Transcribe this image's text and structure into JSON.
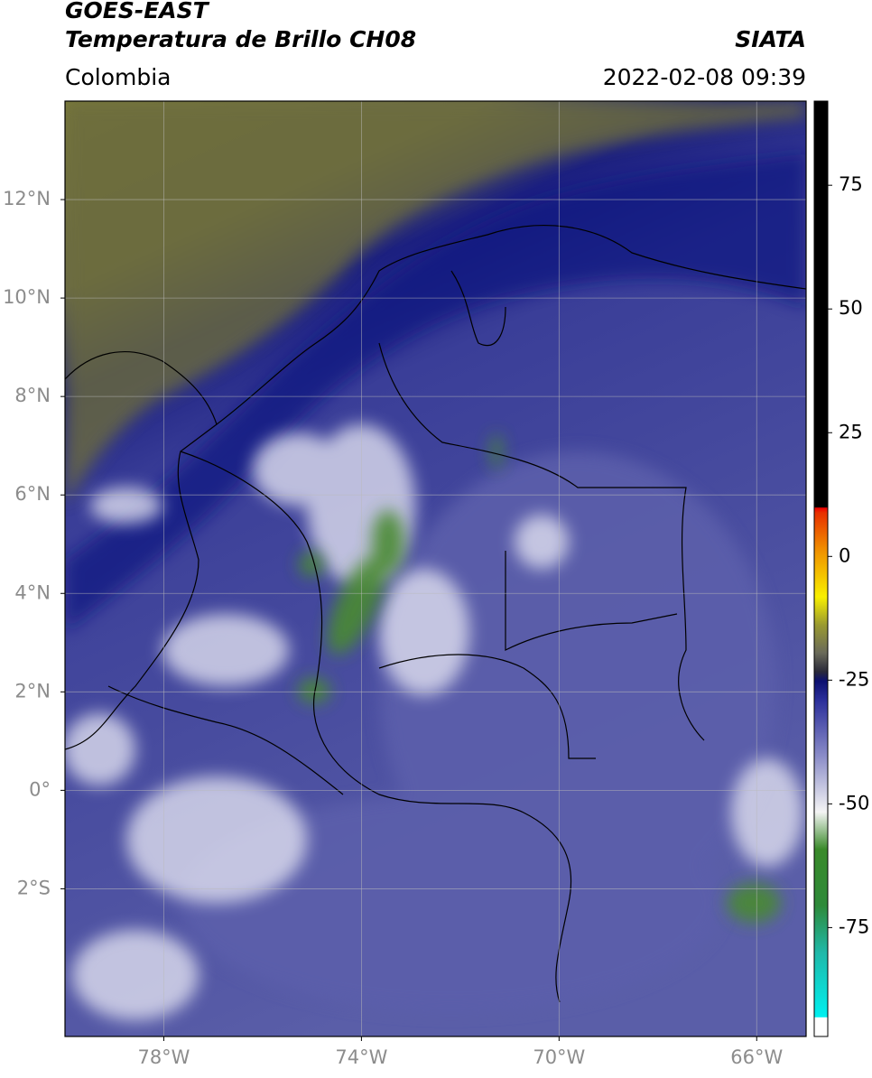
{
  "header": {
    "title": "GOES-EAST",
    "subtitle": "Temperatura de Brillo CH08",
    "region": "Colombia",
    "source": "SIATA",
    "datetime": "2022-02-08 09:39"
  },
  "map": {
    "xlim": [
      -80,
      -65
    ],
    "ylim": [
      -5,
      14
    ],
    "xticks": [
      {
        "value": -78,
        "label": "78°W"
      },
      {
        "value": -74,
        "label": "74°W"
      },
      {
        "value": -70,
        "label": "70°W"
      },
      {
        "value": -66,
        "label": "66°W"
      }
    ],
    "yticks": [
      {
        "value": 12,
        "label": "12°N"
      },
      {
        "value": 10,
        "label": "10°N"
      },
      {
        "value": 8,
        "label": "8°N"
      },
      {
        "value": 6,
        "label": "6°N"
      },
      {
        "value": 4,
        "label": "4°N"
      },
      {
        "value": 2,
        "label": "2°N"
      },
      {
        "value": 0,
        "label": "0°"
      },
      {
        "value": -2,
        "label": "2°S"
      }
    ],
    "grid": true
  },
  "colorbar": {
    "lim": [
      -97,
      92
    ],
    "ticks": [
      75,
      50,
      25,
      0,
      -25,
      -50,
      -75
    ]
  }
}
